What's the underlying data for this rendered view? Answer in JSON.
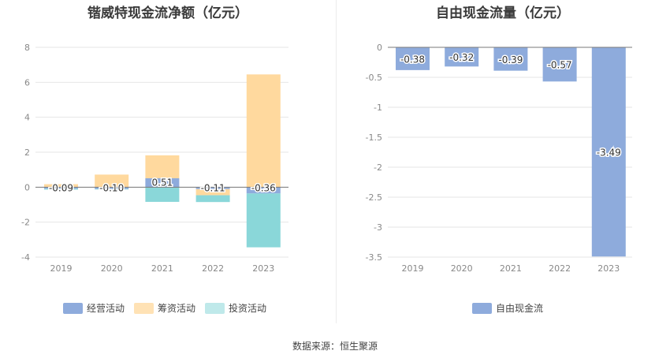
{
  "charts": [
    {
      "title": "锴威特现金流净额（亿元）",
      "chart_data": {
        "type": "bar",
        "stacked": true,
        "categories": [
          "2019",
          "2020",
          "2021",
          "2022",
          "2023"
        ],
        "series": [
          {
            "name": "经营活动",
            "color": "#8eabdc",
            "values": [
              -0.09,
              -0.1,
              0.51,
              -0.11,
              -0.36
            ],
            "labels": [
              "-0.09",
              "-0.10",
              "0.51",
              "-0.11",
              "-0.36"
            ]
          },
          {
            "name": "筹资活动",
            "color": "#ffd99e",
            "values": [
              0.17,
              0.72,
              1.31,
              -0.35,
              6.45
            ]
          },
          {
            "name": "投资活动",
            "color": "#8ad7d9",
            "values": [
              -0.05,
              -0.03,
              -0.84,
              -0.39,
              -3.08
            ]
          }
        ],
        "ylim": [
          -4,
          8
        ],
        "yticks": [
          -4,
          -2,
          0,
          2,
          4,
          6,
          8
        ],
        "grid": true,
        "legend": "bottom"
      }
    },
    {
      "title": "自由现金流量（亿元）",
      "chart_data": {
        "type": "bar",
        "categories": [
          "2019",
          "2020",
          "2021",
          "2022",
          "2023"
        ],
        "series": [
          {
            "name": "自由现金流",
            "color": "#8eabdc",
            "values": [
              -0.38,
              -0.32,
              -0.39,
              -0.57,
              -3.49
            ],
            "labels": [
              "-0.38",
              "-0.32",
              "-0.39",
              "-0.57",
              "-3.49"
            ]
          }
        ],
        "ylim": [
          -3.5,
          0
        ],
        "yticks": [
          -3.5,
          -3,
          -2.5,
          -2,
          -1.5,
          -1,
          -0.5,
          0
        ],
        "grid": true,
        "legend": "bottom"
      }
    }
  ],
  "legend_left": [
    {
      "label": "经营活动",
      "color": "#8eabdc"
    },
    {
      "label": "筹资活动",
      "color": "#ffe2b5"
    },
    {
      "label": "投资活动",
      "color": "#bfe9ea"
    }
  ],
  "legend_right": [
    {
      "label": "自由现金流",
      "color": "#8eabdc"
    }
  ],
  "source": "数据来源：恒生聚源"
}
